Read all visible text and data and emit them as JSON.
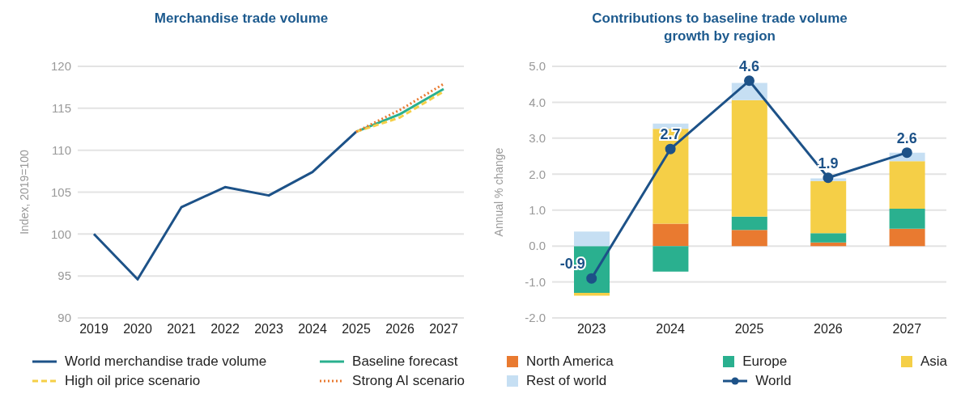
{
  "chart_data": [
    {
      "type": "line",
      "title": "Merchandise trade volume",
      "ylabel": "Index, 2019=100",
      "categories": [
        "2019",
        "2020",
        "2021",
        "2022",
        "2023",
        "2024",
        "2025",
        "2026",
        "2027"
      ],
      "ylim": [
        90,
        120
      ],
      "yticks": [
        90,
        95,
        100,
        105,
        110,
        115,
        120
      ],
      "grid": "y",
      "legend": "bottom",
      "series": [
        {
          "name": "World merchandise trade volume",
          "color": "#1d5288",
          "line_style": "solid",
          "values": [
            100,
            94.6,
            103.2,
            105.6,
            104.6,
            107.4,
            112.2,
            null,
            null
          ]
        },
        {
          "name": "Baseline forecast",
          "color": "#2ab08f",
          "line_style": "solid",
          "values": [
            null,
            null,
            null,
            null,
            null,
            null,
            112.2,
            114.3,
            117.3
          ]
        },
        {
          "name": "High oil price scenario",
          "color": "#f5cf47",
          "line_style": "dashed",
          "values": [
            null,
            null,
            null,
            null,
            null,
            null,
            112.2,
            113.9,
            117.0
          ]
        },
        {
          "name": "Strong AI scenario",
          "color": "#e97a30",
          "line_style": "dotted",
          "values": [
            null,
            null,
            null,
            null,
            null,
            null,
            112.2,
            114.8,
            117.9
          ]
        }
      ]
    },
    {
      "type": "bar",
      "stacked": true,
      "title": "Contributions to baseline trade volume growth by region",
      "ylabel": "Annual % change",
      "categories": [
        "2023",
        "2024",
        "2025",
        "2026",
        "2027"
      ],
      "ylim": [
        -2,
        5
      ],
      "yticks": [
        {
          "value": -2,
          "label": "-2.0"
        },
        {
          "value": -1,
          "label": "-1.0"
        },
        {
          "value": 0,
          "label": "0.0"
        },
        {
          "value": 1,
          "label": "1.0"
        },
        {
          "value": 2,
          "label": "2.0"
        },
        {
          "value": 3,
          "label": "3.0"
        },
        {
          "value": 4,
          "label": "4.0"
        },
        {
          "value": 5,
          "label": "5.0"
        }
      ],
      "grid": "y",
      "legend": "bottom",
      "series": [
        {
          "name": "North America",
          "color": "#e97a30",
          "values": [
            0,
            0.62,
            0.45,
            0.1,
            0.48
          ]
        },
        {
          "name": "Europe",
          "color": "#2ab08f",
          "values": [
            -1.3,
            -0.71,
            0.37,
            0.26,
            0.56
          ]
        },
        {
          "name": "Asia",
          "color": "#f5cf47",
          "values": [
            -0.08,
            2.64,
            3.24,
            1.45,
            1.32
          ]
        },
        {
          "name": "Rest of world",
          "color": "#c6dff3",
          "values": [
            0.4,
            0.15,
            0.48,
            0.07,
            0.24
          ]
        },
        {
          "name": "World",
          "type": "line",
          "color": "#1d5288",
          "marker": "circle",
          "values": [
            -0.9,
            2.7,
            4.6,
            1.9,
            2.6
          ],
          "value_labels": [
            "-0.9",
            "2.7",
            "4.6",
            "1.9",
            "2.6"
          ]
        }
      ]
    }
  ]
}
